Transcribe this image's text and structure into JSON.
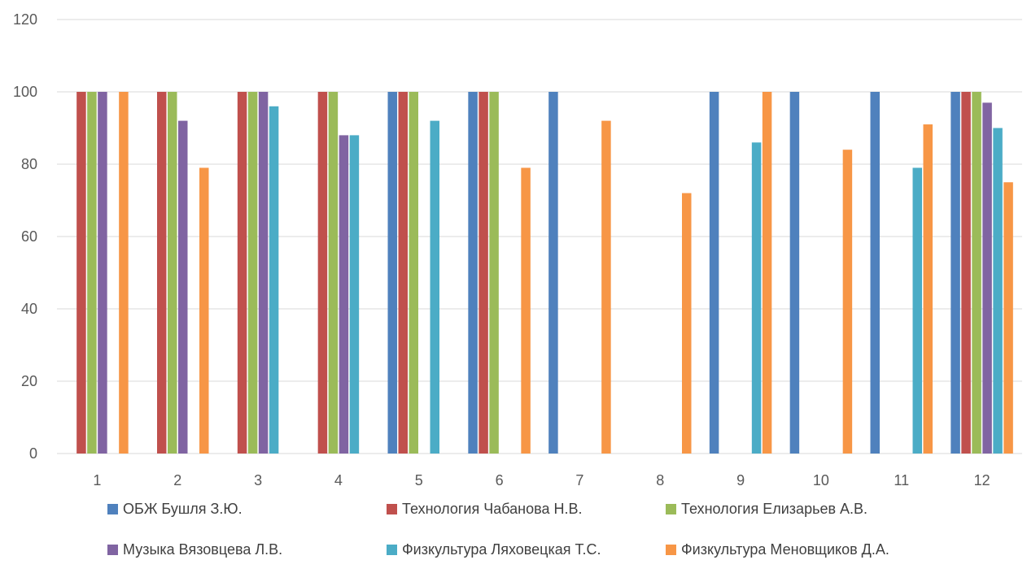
{
  "chart_data": {
    "type": "bar",
    "title": "",
    "xlabel": "",
    "ylabel": "",
    "categories": [
      "1",
      "2",
      "3",
      "4",
      "5",
      "6",
      "7",
      "8",
      "9",
      "10",
      "11",
      "12"
    ],
    "ylim": [
      0,
      120
    ],
    "yticks": [
      0,
      20,
      40,
      60,
      80,
      100,
      120
    ],
    "grid": true,
    "legend_position": "bottom",
    "series": [
      {
        "name": "ОБЖ Бушля З.Ю.",
        "color": "#4F81BD",
        "values": [
          0,
          0,
          0,
          0,
          100,
          100,
          100,
          0,
          100,
          100,
          100,
          100
        ]
      },
      {
        "name": "Технология Чабанова Н.В.",
        "color": "#C0504D",
        "values": [
          100,
          100,
          100,
          100,
          100,
          100,
          0,
          0,
          0,
          0,
          0,
          100
        ]
      },
      {
        "name": "Технология Елизарьев А.В.",
        "color": "#9BBB59",
        "values": [
          100,
          100,
          100,
          100,
          100,
          100,
          0,
          0,
          0,
          0,
          0,
          100
        ]
      },
      {
        "name": "Музыка Вязовцева Л.В.",
        "color": "#8064A2",
        "values": [
          100,
          92,
          100,
          88,
          0,
          0,
          0,
          0,
          0,
          0,
          0,
          97
        ]
      },
      {
        "name": "Физкультура Ляховецкая Т.С.",
        "color": "#4BACC6",
        "values": [
          0,
          0,
          96,
          88,
          92,
          0,
          0,
          0,
          86,
          0,
          79,
          90
        ]
      },
      {
        "name": "Физкультура Меновщиков Д.А.",
        "color": "#F79646",
        "values": [
          100,
          79,
          0,
          0,
          0,
          79,
          92,
          72,
          100,
          84,
          91,
          75
        ]
      }
    ]
  }
}
